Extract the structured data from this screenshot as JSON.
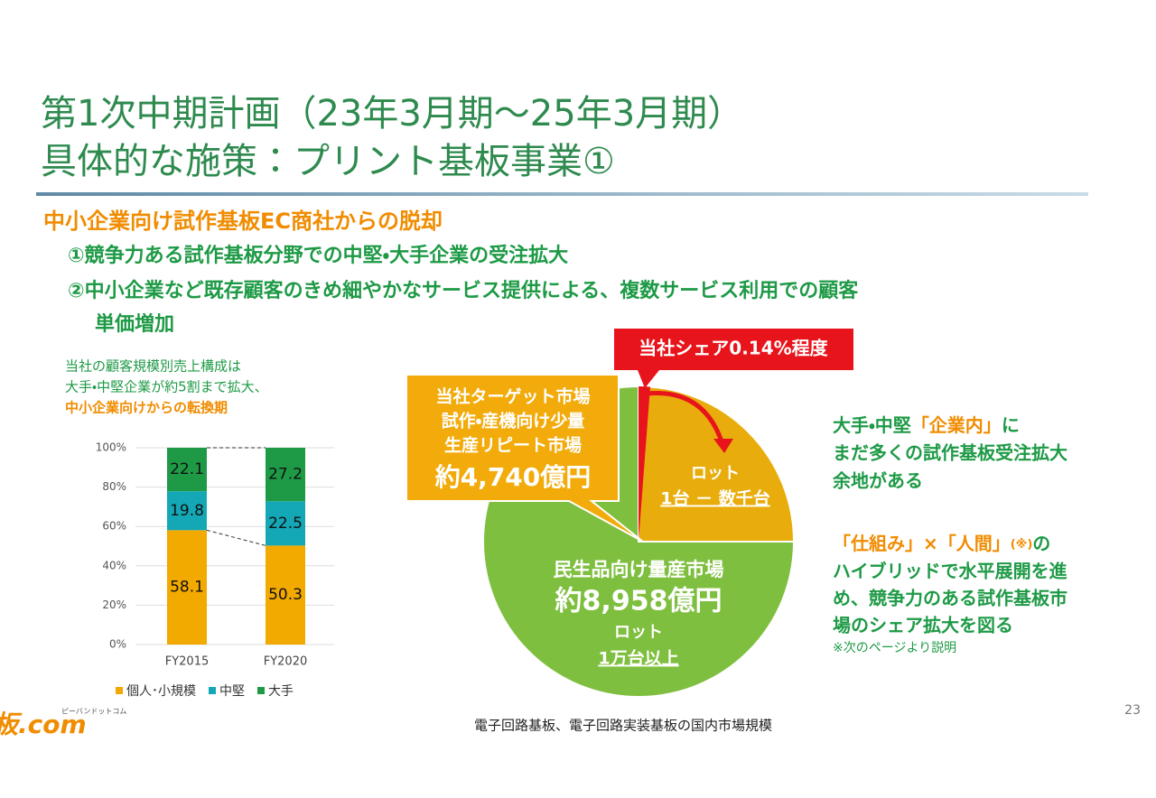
{
  "title": [
    "第1次中期計画（23年3月期～25年3月期）",
    "具体的な施策：プリント基板事業①"
  ],
  "heading": "中小企業向け試作基板EC商社からの脱却",
  "points": [
    "①競争力ある試作基板分野での中堅・大手企業の受注拡大",
    "②中小企業など既存顧客のきめ細やかなサービス提供による、複数サービス利用での顧客",
    "単価増加"
  ],
  "chart_note": [
    "当社の顧客規模別売上構成は",
    "大手・中堅企業が約5割まで拡大、",
    "中小企業向けからの転換期"
  ],
  "chart_data": {
    "type": "stacked-bar",
    "categories": [
      "FY2015",
      "FY2020"
    ],
    "series": [
      {
        "name": "個人･小規模",
        "color": "#f2a900",
        "values": [
          58.1,
          50.3
        ]
      },
      {
        "name": "中堅",
        "color": "#14a7b5",
        "values": [
          19.8,
          22.5
        ]
      },
      {
        "name": "大手",
        "color": "#1e9a46",
        "values": [
          22.1,
          27.2
        ]
      }
    ],
    "ylim": [
      0,
      100
    ],
    "yticks": [
      {
        "value": 0,
        "label": "0%"
      },
      {
        "value": 20,
        "label": "20%"
      },
      {
        "value": 40,
        "label": "40%"
      },
      {
        "value": 60,
        "label": "60%"
      },
      {
        "value": 80,
        "label": "80%"
      },
      {
        "value": 100,
        "label": "100%"
      }
    ],
    "grid": true,
    "legend": "bottom"
  },
  "market": {
    "share_callout": "当社シェア0.14%程度",
    "target": [
      "当社ターゲット市場",
      "試作・産機向け少量",
      "生産リピート市場",
      "約4,740億円"
    ],
    "target_lot": [
      "ロット",
      "1台 － 数千台"
    ],
    "mass": [
      "民生品向け量産市場",
      "約8,958億円",
      "ロット",
      "1万台以上"
    ],
    "caption": "電子回路基板、電子回路実装基板の国内市場規模"
  },
  "right_top": [
    [
      "大手・中堅",
      "「企業内」",
      "に"
    ],
    [
      "まだ多くの試作基板受注拡大"
    ],
    [
      "余地がある"
    ]
  ],
  "right_bottom": [
    [
      "「仕組み」×「人間」",
      "(※)",
      "の"
    ],
    [
      "ハイブリッドで水平展開を進"
    ],
    [
      "め、競争力のある試作基板市"
    ],
    [
      "場のシェア拡大を図る"
    ]
  ],
  "right_note": "※次のページより説明",
  "logo": {
    "tagline": "ピーバンドットコム",
    "name": "板.com"
  },
  "page_number": "23"
}
